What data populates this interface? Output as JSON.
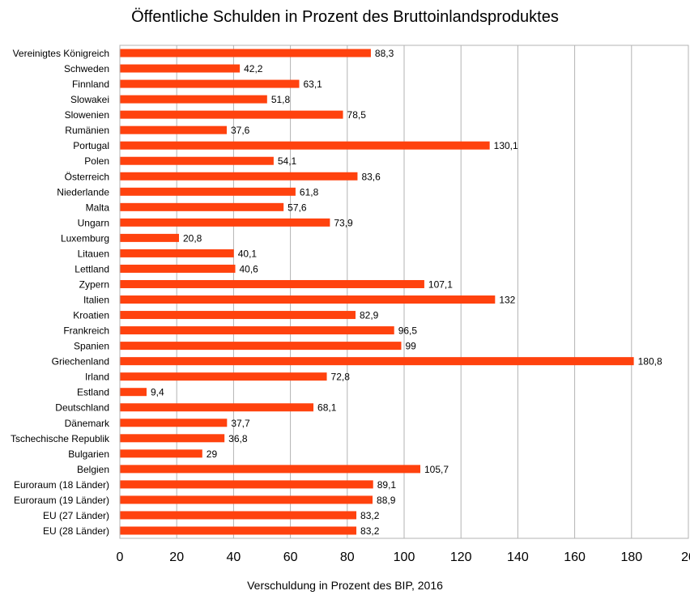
{
  "chart_data": {
    "type": "bar",
    "orientation": "horizontal",
    "title": "Öffentliche Schulden in Prozent des Bruttoinlandsproduktes",
    "xlabel": "Verschuldung in Prozent des BIP, 2016",
    "ylabel": "",
    "xlim": [
      0,
      200
    ],
    "x_ticks": [
      "0",
      "20",
      "40",
      "60",
      "80",
      "100",
      "120",
      "140",
      "160",
      "180",
      "20"
    ],
    "grid": "vertical",
    "bar_color": "#ff420e",
    "categories": [
      "Vereinigtes Königreich",
      "Schweden",
      "Finnland",
      "Slowakei",
      "Slowenien",
      "Rumänien",
      "Portugal",
      "Polen",
      "Österreich",
      "Niederlande",
      "Malta",
      "Ungarn",
      "Luxemburg",
      "Litauen",
      "Lettland",
      "Zypern",
      "Italien",
      "Kroatien",
      "Frankreich",
      "Spanien",
      "Griechenland",
      "Irland",
      "Estland",
      "Deutschland",
      "Dänemark",
      "Tschechische Republik",
      "Bulgarien",
      "Belgien",
      "Euroraum (18 Länder)",
      "Euroraum (19 Länder)",
      "EU (27 Länder)",
      "EU (28 Länder)"
    ],
    "values": [
      88.3,
      42.2,
      63.1,
      51.8,
      78.5,
      37.6,
      130.1,
      54.1,
      83.6,
      61.8,
      57.6,
      73.9,
      20.8,
      40.1,
      40.6,
      107.1,
      132,
      82.9,
      96.5,
      99,
      180.8,
      72.8,
      9.4,
      68.1,
      37.7,
      36.8,
      29,
      105.7,
      89.1,
      88.9,
      83.2,
      83.2
    ],
    "value_labels": [
      "88,3",
      "42,2",
      "63,1",
      "51,8",
      "78,5",
      "37,6",
      "130,1",
      "54,1",
      "83,6",
      "61,8",
      "57,6",
      "73,9",
      "20,8",
      "40,1",
      "40,6",
      "107,1",
      "132",
      "82,9",
      "96,5",
      "99",
      "180,8",
      "72,8",
      "9,4",
      "68,1",
      "37,7",
      "36,8",
      "29",
      "105,7",
      "89,1",
      "88,9",
      "83,2",
      "83,2"
    ]
  }
}
